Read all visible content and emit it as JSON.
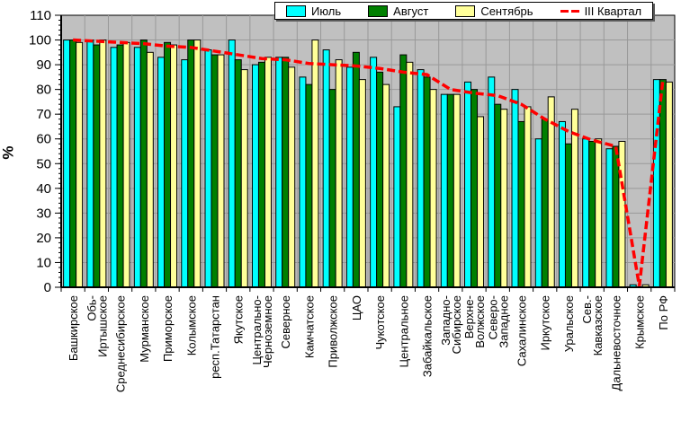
{
  "chart_data": {
    "type": "bar",
    "title": "",
    "xlabel": "",
    "ylabel": "%",
    "ylim": [
      0,
      110
    ],
    "yticks": [
      0,
      10,
      20,
      30,
      40,
      50,
      60,
      70,
      80,
      90,
      100,
      110
    ],
    "grid": true,
    "legend_position": "top",
    "plot_bg": "#C0C0C0",
    "grid_color": "#999999",
    "categories": [
      "Башкирское",
      "Обь-\nИртышское",
      "Среднесибирское",
      "Мурманское",
      "Приморское",
      "Колымское",
      "респ.Татарстан",
      "Якутское",
      "Центрально-\nЧерноземное",
      "Северное",
      "Камчатское",
      "Приволжское",
      "ЦАО",
      "Чукотское",
      "Центральное",
      "Забайкальское",
      "Западно-\nСибирское",
      "Верхне-\nВолжское",
      "Северо-\nЗападное",
      "Сахалинское",
      "Иркутское",
      "Уральское",
      "Сев.-\nКавказское",
      "Дальневосточное",
      "Крымское",
      "По РФ"
    ],
    "series": [
      {
        "name": "Июль",
        "color": "#00FFFF",
        "values": [
          100,
          100,
          97,
          97,
          93,
          92,
          96,
          100,
          90,
          93,
          85,
          96,
          89,
          93,
          73,
          88,
          78,
          83,
          85,
          80,
          60,
          67,
          60,
          56,
          1,
          84
        ]
      },
      {
        "name": "Август",
        "color": "#008000",
        "values": [
          100,
          98,
          98,
          100,
          99,
          100,
          94,
          92,
          91,
          93,
          82,
          80,
          95,
          87,
          94,
          85,
          78,
          80,
          74,
          67,
          68,
          58,
          59,
          57,
          0,
          84
        ]
      },
      {
        "name": "Сентябрь",
        "color": "#FFFF99",
        "values": [
          99,
          100,
          99,
          95,
          98,
          100,
          94,
          88,
          93,
          89,
          100,
          92,
          84,
          82,
          91,
          80,
          78,
          69,
          72,
          73,
          77,
          72,
          60,
          59,
          1,
          83
        ]
      }
    ],
    "line_series": {
      "name": "III Квартал",
      "color": "#FF0000",
      "style": "dashed",
      "values": [
        100,
        99.5,
        99,
        98.5,
        97.5,
        97,
        95.5,
        94,
        92.5,
        92,
        90.5,
        90,
        89.5,
        88.5,
        87,
        86,
        80,
        78.5,
        77.5,
        74,
        68,
        63,
        59.5,
        57,
        0.5,
        84
      ]
    }
  }
}
